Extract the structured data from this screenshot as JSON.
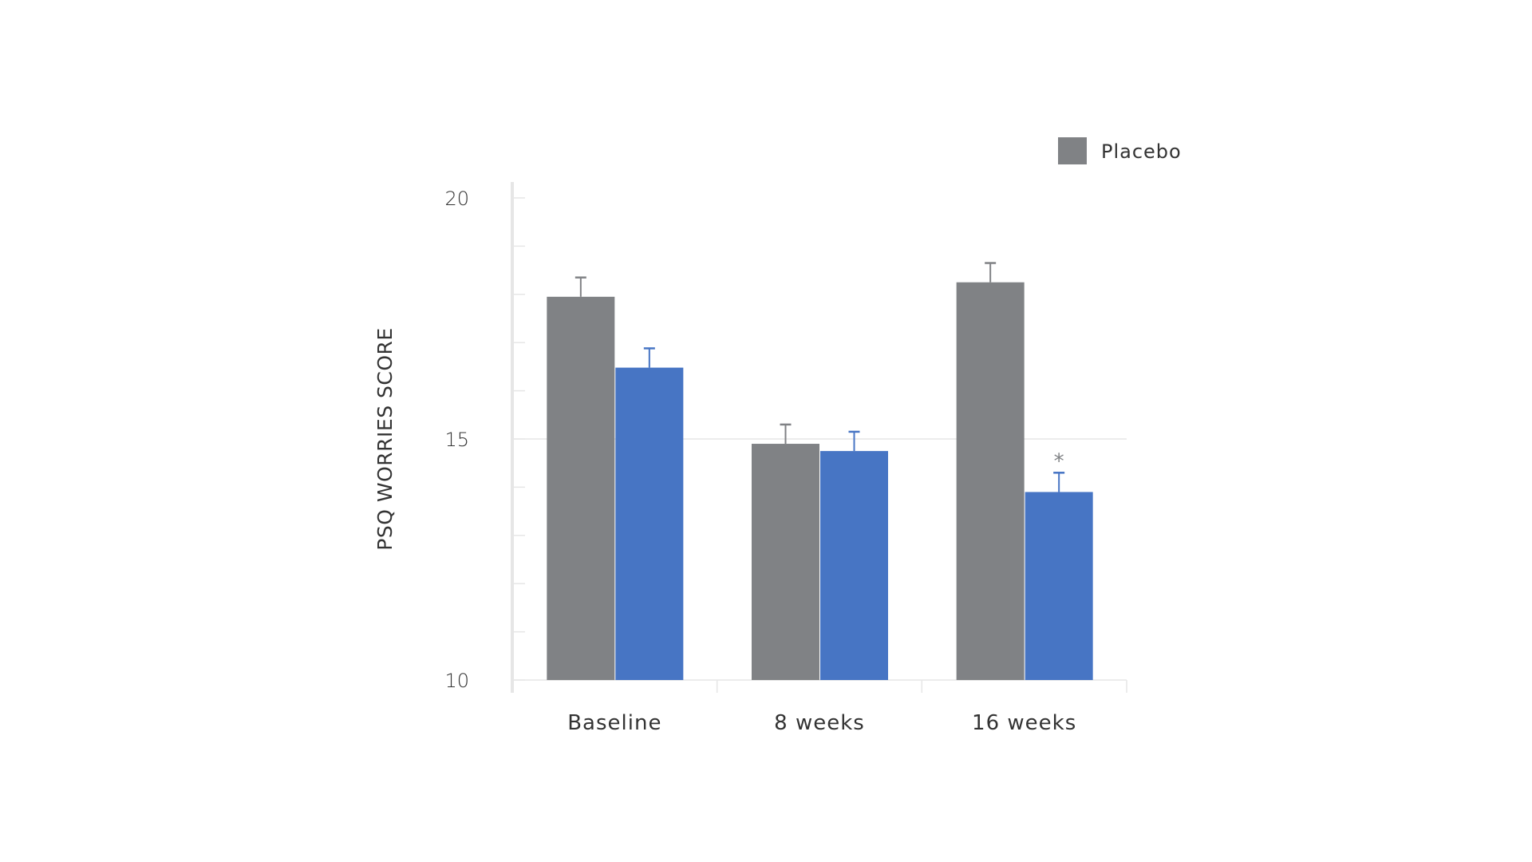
{
  "chart_data": {
    "type": "bar",
    "categories": [
      "Baseline",
      "8 weeks",
      "16 weeks"
    ],
    "series": [
      {
        "name": "Placebo",
        "color": "#808285",
        "values": [
          17.95,
          14.9,
          18.25
        ],
        "errors": [
          0.4,
          0.4,
          0.4
        ]
      },
      {
        "color": "#4775c4",
        "values": [
          16.48,
          14.75,
          13.9
        ],
        "errors": [
          0.4,
          0.4,
          0.4
        ]
      }
    ],
    "ylabel": "PSQ WORRIES SCORE",
    "xlabel": "",
    "ylim": [
      10,
      20
    ],
    "yticks": [
      "10",
      "15",
      "20"
    ],
    "minor_tick_step": 1,
    "gridlines": [
      15
    ],
    "legend": {
      "position": "top-right",
      "entries": [
        "Placebo"
      ]
    },
    "annotations": [
      {
        "category": "16 weeks",
        "series_index": 1,
        "text": "*"
      }
    ]
  }
}
